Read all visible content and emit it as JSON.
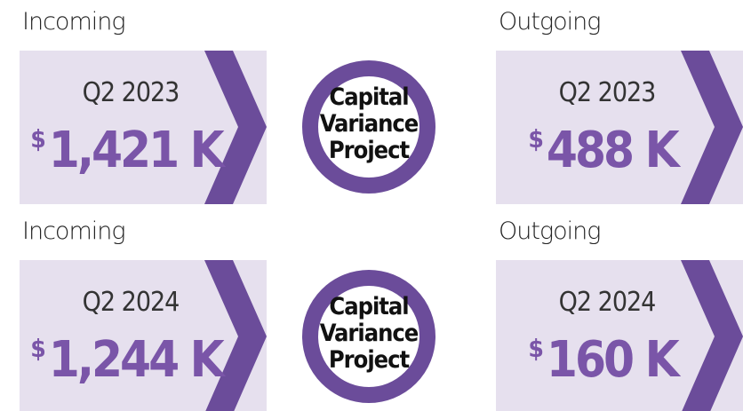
{
  "rows": [
    {
      "incoming": {
        "label": "Incoming",
        "period": "Q2 2023",
        "currency": "$",
        "amount": "1,421 K"
      },
      "center": [
        "Capital",
        "Variance",
        "Project"
      ],
      "outgoing": {
        "label": "Outgoing",
        "period": "Q2 2023",
        "currency": "$",
        "amount": "488 K"
      }
    },
    {
      "incoming": {
        "label": "Incoming",
        "period": "Q2 2024",
        "currency": "$",
        "amount": "1,244 K"
      },
      "center": [
        "Capital",
        "Variance",
        "Project"
      ],
      "outgoing": {
        "label": "Outgoing",
        "period": "Q2 2024",
        "currency": "$",
        "amount": "160 K"
      }
    }
  ]
}
